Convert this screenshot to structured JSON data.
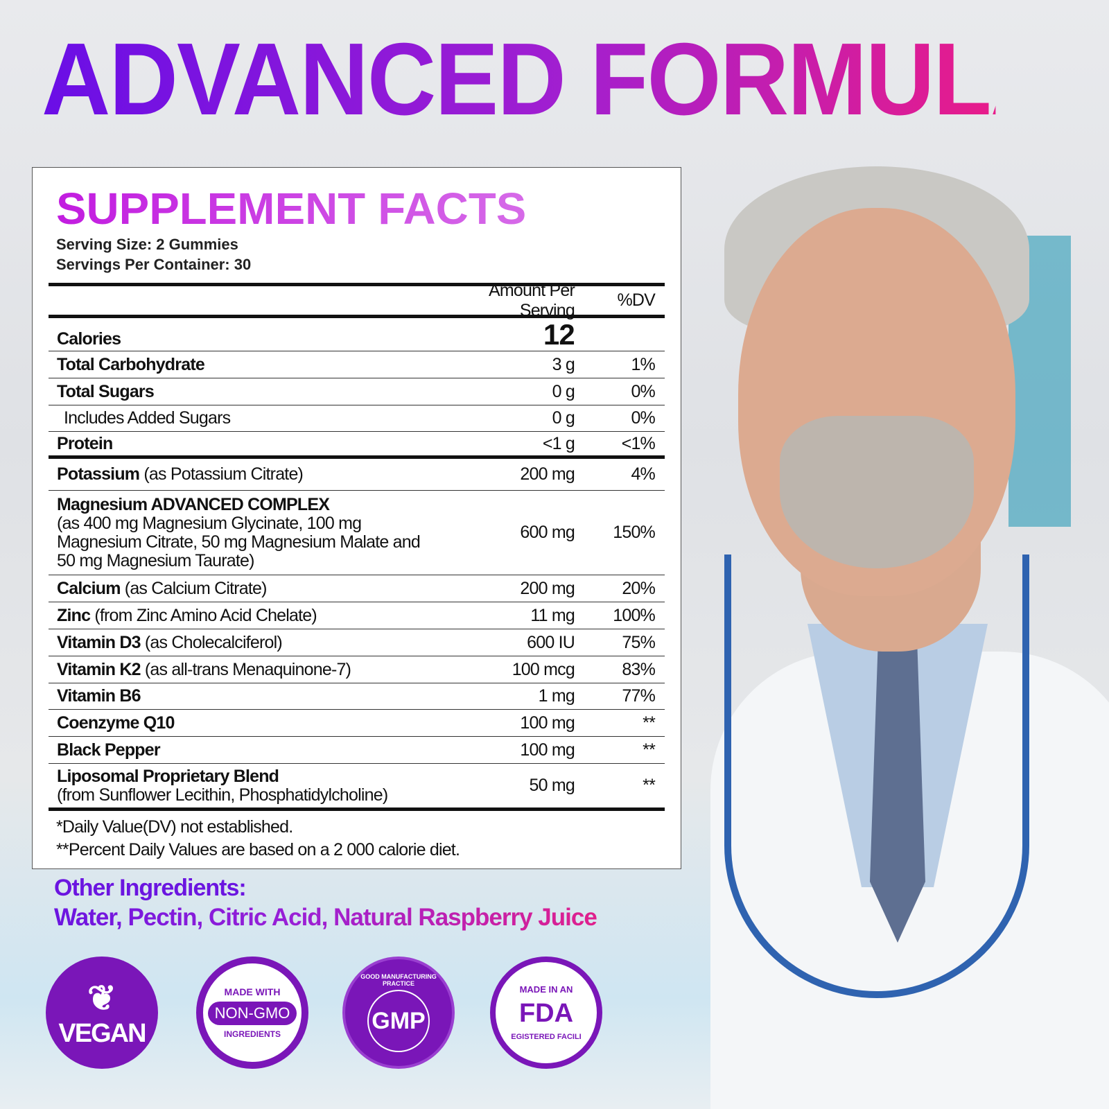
{
  "headline": "ADVANCED FORMULA",
  "facts": {
    "title": "SUPPLEMENT FACTS",
    "serving_size": "Serving Size: 2 Gummies",
    "servings_per_container": "Servings Per Container: 30",
    "col_amount": "Amount Per Serving",
    "col_dv": "%DV",
    "calories_label": "Calories",
    "calories_value": "12",
    "rows": [
      {
        "name": "Total Carbohydrate",
        "detail": "",
        "amount": "3 g",
        "dv": "1%"
      },
      {
        "name": "Total Sugars",
        "detail": "",
        "amount": "0 g",
        "dv": "0%"
      },
      {
        "name": "",
        "detail": "Includes Added Sugars",
        "amount": "0 g",
        "dv": "0%"
      },
      {
        "name": "Protein",
        "detail": "",
        "amount": "<1 g",
        "dv": "<1%"
      },
      {
        "name": "Potassium",
        "detail": " (as Potassium Citrate)",
        "amount": "200 mg",
        "dv": "4%"
      },
      {
        "name": "Magnesium ADVANCED COMPLEX",
        "detail": "(as 400 mg Magnesium Glycinate, 100 mg Magnesium Citrate, 50 mg Magnesium Malate and 50 mg Magnesium Taurate)",
        "amount": "600 mg",
        "dv": "150%"
      },
      {
        "name": "Calcium",
        "detail": " (as Calcium Citrate)",
        "amount": "200 mg",
        "dv": "20%"
      },
      {
        "name": "Zinc",
        "detail": " (from Zinc Amino Acid Chelate)",
        "amount": "11 mg",
        "dv": "100%"
      },
      {
        "name": "Vitamin D3",
        "detail": " (as Cholecalciferol)",
        "amount": "600 IU",
        "dv": "75%"
      },
      {
        "name": "Vitamin K2",
        "detail": " (as all-trans Menaquinone-7)",
        "amount": "100 mcg",
        "dv": "83%"
      },
      {
        "name": "Vitamin B6",
        "detail": "",
        "amount": "1 mg",
        "dv": "77%"
      },
      {
        "name": "Coenzyme Q10",
        "detail": "",
        "amount": "100 mg",
        "dv": "**"
      },
      {
        "name": "Black Pepper",
        "detail": "",
        "amount": "100 mg",
        "dv": "**"
      },
      {
        "name": "Liposomal Proprietary Blend",
        "detail": "(from Sunflower Lecithin, Phosphatidylcholine)",
        "amount": "50 mg",
        "dv": "**"
      }
    ],
    "footnote1": "*Daily Value(DV) not established.",
    "footnote2": "**Percent Daily Values are based on a 2 000 calorie diet."
  },
  "other_ingredients": {
    "heading": "Other Ingredients:",
    "value": "Water, Pectin, Citric Acid, Natural Raspberry Juice"
  },
  "badges": {
    "vegan": "VEGAN",
    "nongmo_top": "MADE WITH",
    "nongmo_main": "NON-GMO",
    "nongmo_bottom": "INGREDIENTS",
    "gmp_ring": "GOOD MANUFACTURING PRACTICE",
    "gmp_main": "GMP",
    "fda_top": "MADE IN AN",
    "fda_main": "FDA",
    "fda_bottom": "EGISTERED FACILI"
  },
  "colors": {
    "purple": "#6b15e0",
    "magenta": "#e81c8a",
    "badge": "#7a16b8"
  }
}
